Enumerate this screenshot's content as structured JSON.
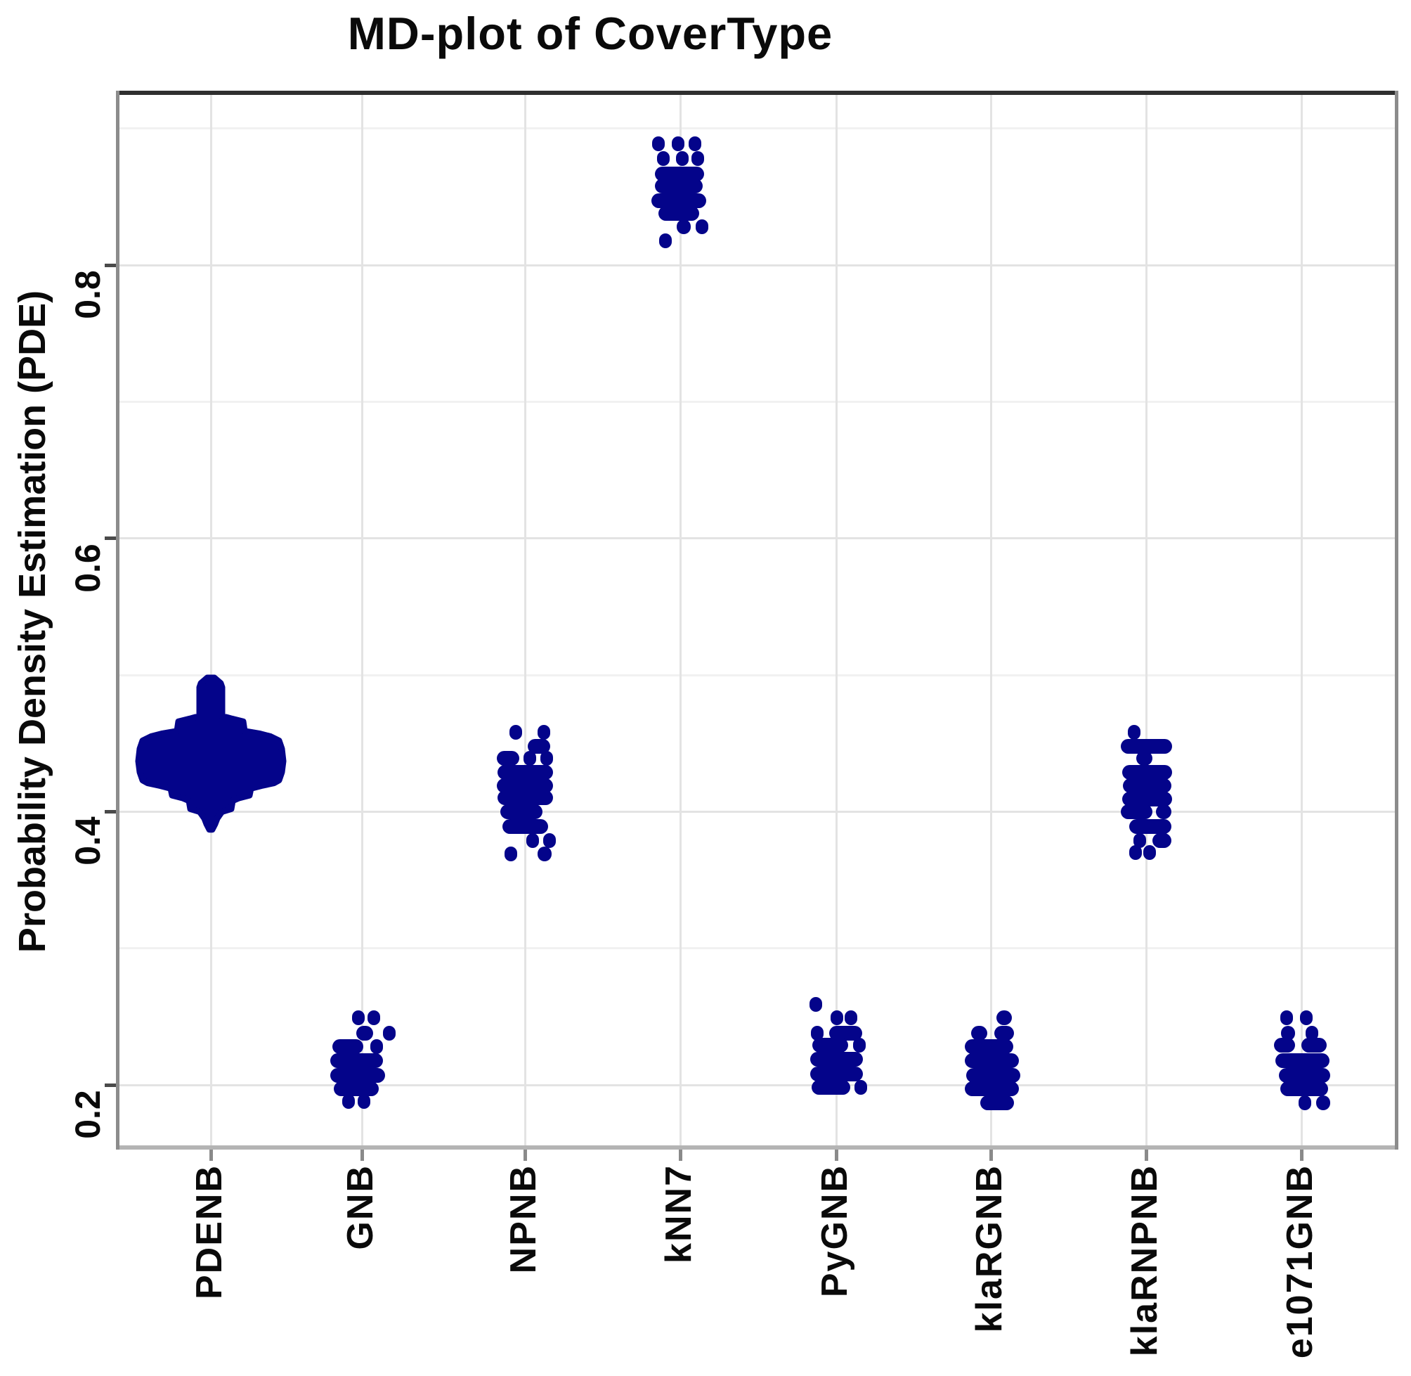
{
  "title": "MD-plot of CoverType",
  "y_axis": {
    "label": "Probability Density Estimation (PDE)",
    "tick_labels": [
      "0.2",
      "0.4",
      "0.6",
      "0.8"
    ],
    "tick_values": [
      0.2,
      0.4,
      0.6,
      0.8
    ]
  },
  "x_axis": {
    "tick_labels": [
      "PDENB",
      "GNB",
      "NPNB",
      "kNN7",
      "PyGNB",
      "klaRGNB",
      "klaRNPNB",
      "e1071GNB"
    ]
  },
  "colors": {
    "points": "#04048a",
    "panel_background": "#ffffff",
    "grid_major": "#e3e3e3",
    "grid_minor": "#f1f1f1",
    "panel_border_top": "#2f2f2f",
    "panel_border_side": "#8c8c8c",
    "panel_border_bottom": "#b4b4b4"
  },
  "chart_data": {
    "type": "scatter",
    "subtype": "mirrored-density-plot (MD-plot), bee-swarm style dot rows per classifier",
    "title": "MD-plot of CoverType",
    "xlabel": "",
    "ylabel": "Probability Density Estimation (PDE)",
    "categories": [
      "PDENB",
      "GNB",
      "NPNB",
      "kNN7",
      "PyGNB",
      "klaRGNB",
      "klaRNPNB",
      "e1071GNB"
    ],
    "ylim": [
      0.155,
      0.925
    ],
    "y_major_gridlines": [
      0.2,
      0.4,
      0.6,
      0.8
    ],
    "y_minor_gridlines": [
      0.3,
      0.5,
      0.7,
      0.9
    ],
    "legend": "none",
    "groups": [
      {
        "name": "PDENB",
        "kind": "violin",
        "pde_range": [
          0.387,
          0.498
        ],
        "pde_mode": 0.445,
        "profile": [
          [
            0.498,
            5
          ],
          [
            0.494,
            14
          ],
          [
            0.491,
            16
          ],
          [
            0.47,
            16
          ],
          [
            0.468,
            30
          ],
          [
            0.466,
            46
          ],
          [
            0.459,
            48
          ],
          [
            0.457,
            70
          ],
          [
            0.455,
            85
          ],
          [
            0.452,
            97
          ],
          [
            0.446,
            101
          ],
          [
            0.437,
            103
          ],
          [
            0.429,
            101
          ],
          [
            0.423,
            97
          ],
          [
            0.421,
            90
          ],
          [
            0.419,
            72
          ],
          [
            0.417,
            57
          ],
          [
            0.412,
            55
          ],
          [
            0.41,
            40
          ],
          [
            0.408,
            31
          ],
          [
            0.402,
            29
          ],
          [
            0.4,
            16
          ],
          [
            0.398,
            13
          ],
          [
            0.395,
            9
          ],
          [
            0.391,
            6
          ],
          [
            0.387,
            2
          ]
        ]
      },
      {
        "name": "GNB",
        "kind": "swarm",
        "pde_range": [
          0.188,
          0.249
        ],
        "pde_mode": 0.21,
        "rows": [
          {
            "v": 0.249,
            "segs": [
              [
                -14,
                2
              ],
              [
                8,
                24
              ]
            ]
          },
          {
            "v": 0.238,
            "segs": [
              [
                -8,
                16
              ],
              [
                30,
                46
              ]
            ]
          },
          {
            "v": 0.228,
            "segs": [
              [
                -42,
                2
              ],
              [
                12,
                30
              ]
            ]
          },
          {
            "v": 0.218,
            "segs": [
              [
                -45,
                30
              ]
            ]
          },
          {
            "v": 0.207,
            "segs": [
              [
                -45,
                33
              ]
            ]
          },
          {
            "v": 0.197,
            "segs": [
              [
                -40,
                24
              ]
            ]
          },
          {
            "v": 0.188,
            "segs": [
              [
                -28,
                -12
              ],
              [
                -6,
                10
              ]
            ]
          }
        ]
      },
      {
        "name": "NPNB",
        "kind": "swarm",
        "pde_range": [
          0.369,
          0.458
        ],
        "pde_mode": 0.42,
        "rows": [
          {
            "v": 0.458,
            "segs": [
              [
                -22,
                -6
              ],
              [
                18,
                34
              ]
            ]
          },
          {
            "v": 0.448,
            "segs": [
              [
                4,
                36
              ]
            ]
          },
          {
            "v": 0.439,
            "segs": [
              [
                -40,
                -8
              ],
              [
                -2,
                14
              ],
              [
                22,
                38
              ]
            ]
          },
          {
            "v": 0.429,
            "segs": [
              [
                -39,
                40
              ]
            ]
          },
          {
            "v": 0.419,
            "segs": [
              [
                -40,
                40
              ]
            ]
          },
          {
            "v": 0.41,
            "segs": [
              [
                -39,
                40
              ]
            ]
          },
          {
            "v": 0.4,
            "segs": [
              [
                -35,
                25
              ]
            ]
          },
          {
            "v": 0.389,
            "segs": [
              [
                -32,
                33
              ]
            ]
          },
          {
            "v": 0.379,
            "segs": [
              [
                2,
                20
              ],
              [
                26,
                42
              ]
            ]
          },
          {
            "v": 0.369,
            "segs": [
              [
                -29,
                -13
              ],
              [
                18,
                38
              ]
            ]
          }
        ]
      },
      {
        "name": "kNN7",
        "kind": "swarm",
        "pde_range": [
          0.818,
          0.889
        ],
        "pde_mode": 0.855,
        "rows": [
          {
            "v": 0.889,
            "segs": [
              [
                -40,
                -22
              ],
              [
                -12,
                6
              ],
              [
                12,
                30
              ]
            ]
          },
          {
            "v": 0.878,
            "segs": [
              [
                -33,
                -15
              ],
              [
                -6,
                12
              ],
              [
                16,
                28
              ]
            ]
          },
          {
            "v": 0.867,
            "segs": [
              [
                -36,
                34
              ]
            ]
          },
          {
            "v": 0.858,
            "segs": [
              [
                -36,
                32
              ]
            ]
          },
          {
            "v": 0.847,
            "segs": [
              [
                -41,
                37
              ]
            ]
          },
          {
            "v": 0.838,
            "segs": [
              [
                -31,
                27
              ]
            ]
          },
          {
            "v": 0.828,
            "segs": [
              [
                -5,
                15
              ],
              [
                22,
                38
              ]
            ]
          },
          {
            "v": 0.818,
            "segs": [
              [
                -30,
                -14
              ]
            ]
          }
        ]
      },
      {
        "name": "PyGNB",
        "kind": "swarm",
        "pde_range": [
          0.198,
          0.259
        ],
        "pde_mode": 0.215,
        "rows": [
          {
            "v": 0.259,
            "segs": [
              [
                -38,
                -22
              ]
            ]
          },
          {
            "v": 0.249,
            "segs": [
              [
                -8,
                8
              ],
              [
                12,
                28
              ]
            ]
          },
          {
            "v": 0.238,
            "segs": [
              [
                -36,
                -20
              ],
              [
                -10,
                37
              ]
            ]
          },
          {
            "v": 0.229,
            "segs": [
              [
                -34,
                17
              ],
              [
                24,
                40
              ]
            ]
          },
          {
            "v": 0.219,
            "segs": [
              [
                -37,
                38
              ]
            ]
          },
          {
            "v": 0.208,
            "segs": [
              [
                -37,
                38
              ]
            ]
          },
          {
            "v": 0.198,
            "segs": [
              [
                -35,
                20
              ],
              [
                26,
                42
              ]
            ]
          }
        ]
      },
      {
        "name": "klaRGNB",
        "kind": "swarm",
        "pde_range": [
          0.187,
          0.249
        ],
        "pde_mode": 0.21,
        "rows": [
          {
            "v": 0.249,
            "segs": [
              [
                8,
                30
              ]
            ]
          },
          {
            "v": 0.238,
            "segs": [
              [
                -28,
                -5
              ],
              [
                5,
                33
              ]
            ]
          },
          {
            "v": 0.228,
            "segs": [
              [
                -37,
                32
              ]
            ]
          },
          {
            "v": 0.218,
            "segs": [
              [
                -37,
                40
              ]
            ]
          },
          {
            "v": 0.207,
            "segs": [
              [
                -35,
                42
              ]
            ]
          },
          {
            "v": 0.197,
            "segs": [
              [
                -37,
                40
              ]
            ]
          },
          {
            "v": 0.187,
            "segs": [
              [
                -15,
                33
              ]
            ]
          }
        ]
      },
      {
        "name": "klaRNPNB",
        "kind": "swarm",
        "pde_range": [
          0.37,
          0.458
        ],
        "pde_mode": 0.41,
        "rows": [
          {
            "v": 0.458,
            "segs": [
              [
                -26,
                -10
              ]
            ]
          },
          {
            "v": 0.448,
            "segs": [
              [
                -36,
                37
              ]
            ]
          },
          {
            "v": 0.439,
            "segs": [
              [
                -14,
                9
              ]
            ]
          },
          {
            "v": 0.429,
            "segs": [
              [
                -34,
                37
              ]
            ]
          },
          {
            "v": 0.419,
            "segs": [
              [
                -33,
                36
              ]
            ]
          },
          {
            "v": 0.409,
            "segs": [
              [
                -34,
                37
              ]
            ]
          },
          {
            "v": 0.4,
            "segs": [
              [
                -36,
                9
              ],
              [
                14,
                36
              ]
            ]
          },
          {
            "v": 0.389,
            "segs": [
              [
                -24,
                36
              ]
            ]
          },
          {
            "v": 0.379,
            "segs": [
              [
                -18,
                -2
              ],
              [
                9,
                36
              ]
            ]
          },
          {
            "v": 0.37,
            "segs": [
              [
                -24,
                -8
              ],
              [
                -4,
                12
              ]
            ]
          }
        ]
      },
      {
        "name": "e1071GNB",
        "kind": "swarm",
        "pde_range": [
          0.187,
          0.249
        ],
        "pde_mode": 0.21,
        "rows": [
          {
            "v": 0.249,
            "segs": [
              [
                -30,
                -14
              ],
              [
                -2,
                14
              ]
            ]
          },
          {
            "v": 0.238,
            "segs": [
              [
                -29,
                -9
              ],
              [
                6,
                22
              ]
            ]
          },
          {
            "v": 0.229,
            "segs": [
              [
                -39,
                -9
              ],
              [
                0,
                36
              ]
            ]
          },
          {
            "v": 0.218,
            "segs": [
              [
                -37,
                40
              ]
            ]
          },
          {
            "v": 0.207,
            "segs": [
              [
                -32,
                41
              ]
            ]
          },
          {
            "v": 0.197,
            "segs": [
              [
                -30,
                38
              ]
            ]
          },
          {
            "v": 0.187,
            "segs": [
              [
                -4,
                12
              ],
              [
                21,
                41
              ]
            ]
          }
        ]
      }
    ]
  }
}
